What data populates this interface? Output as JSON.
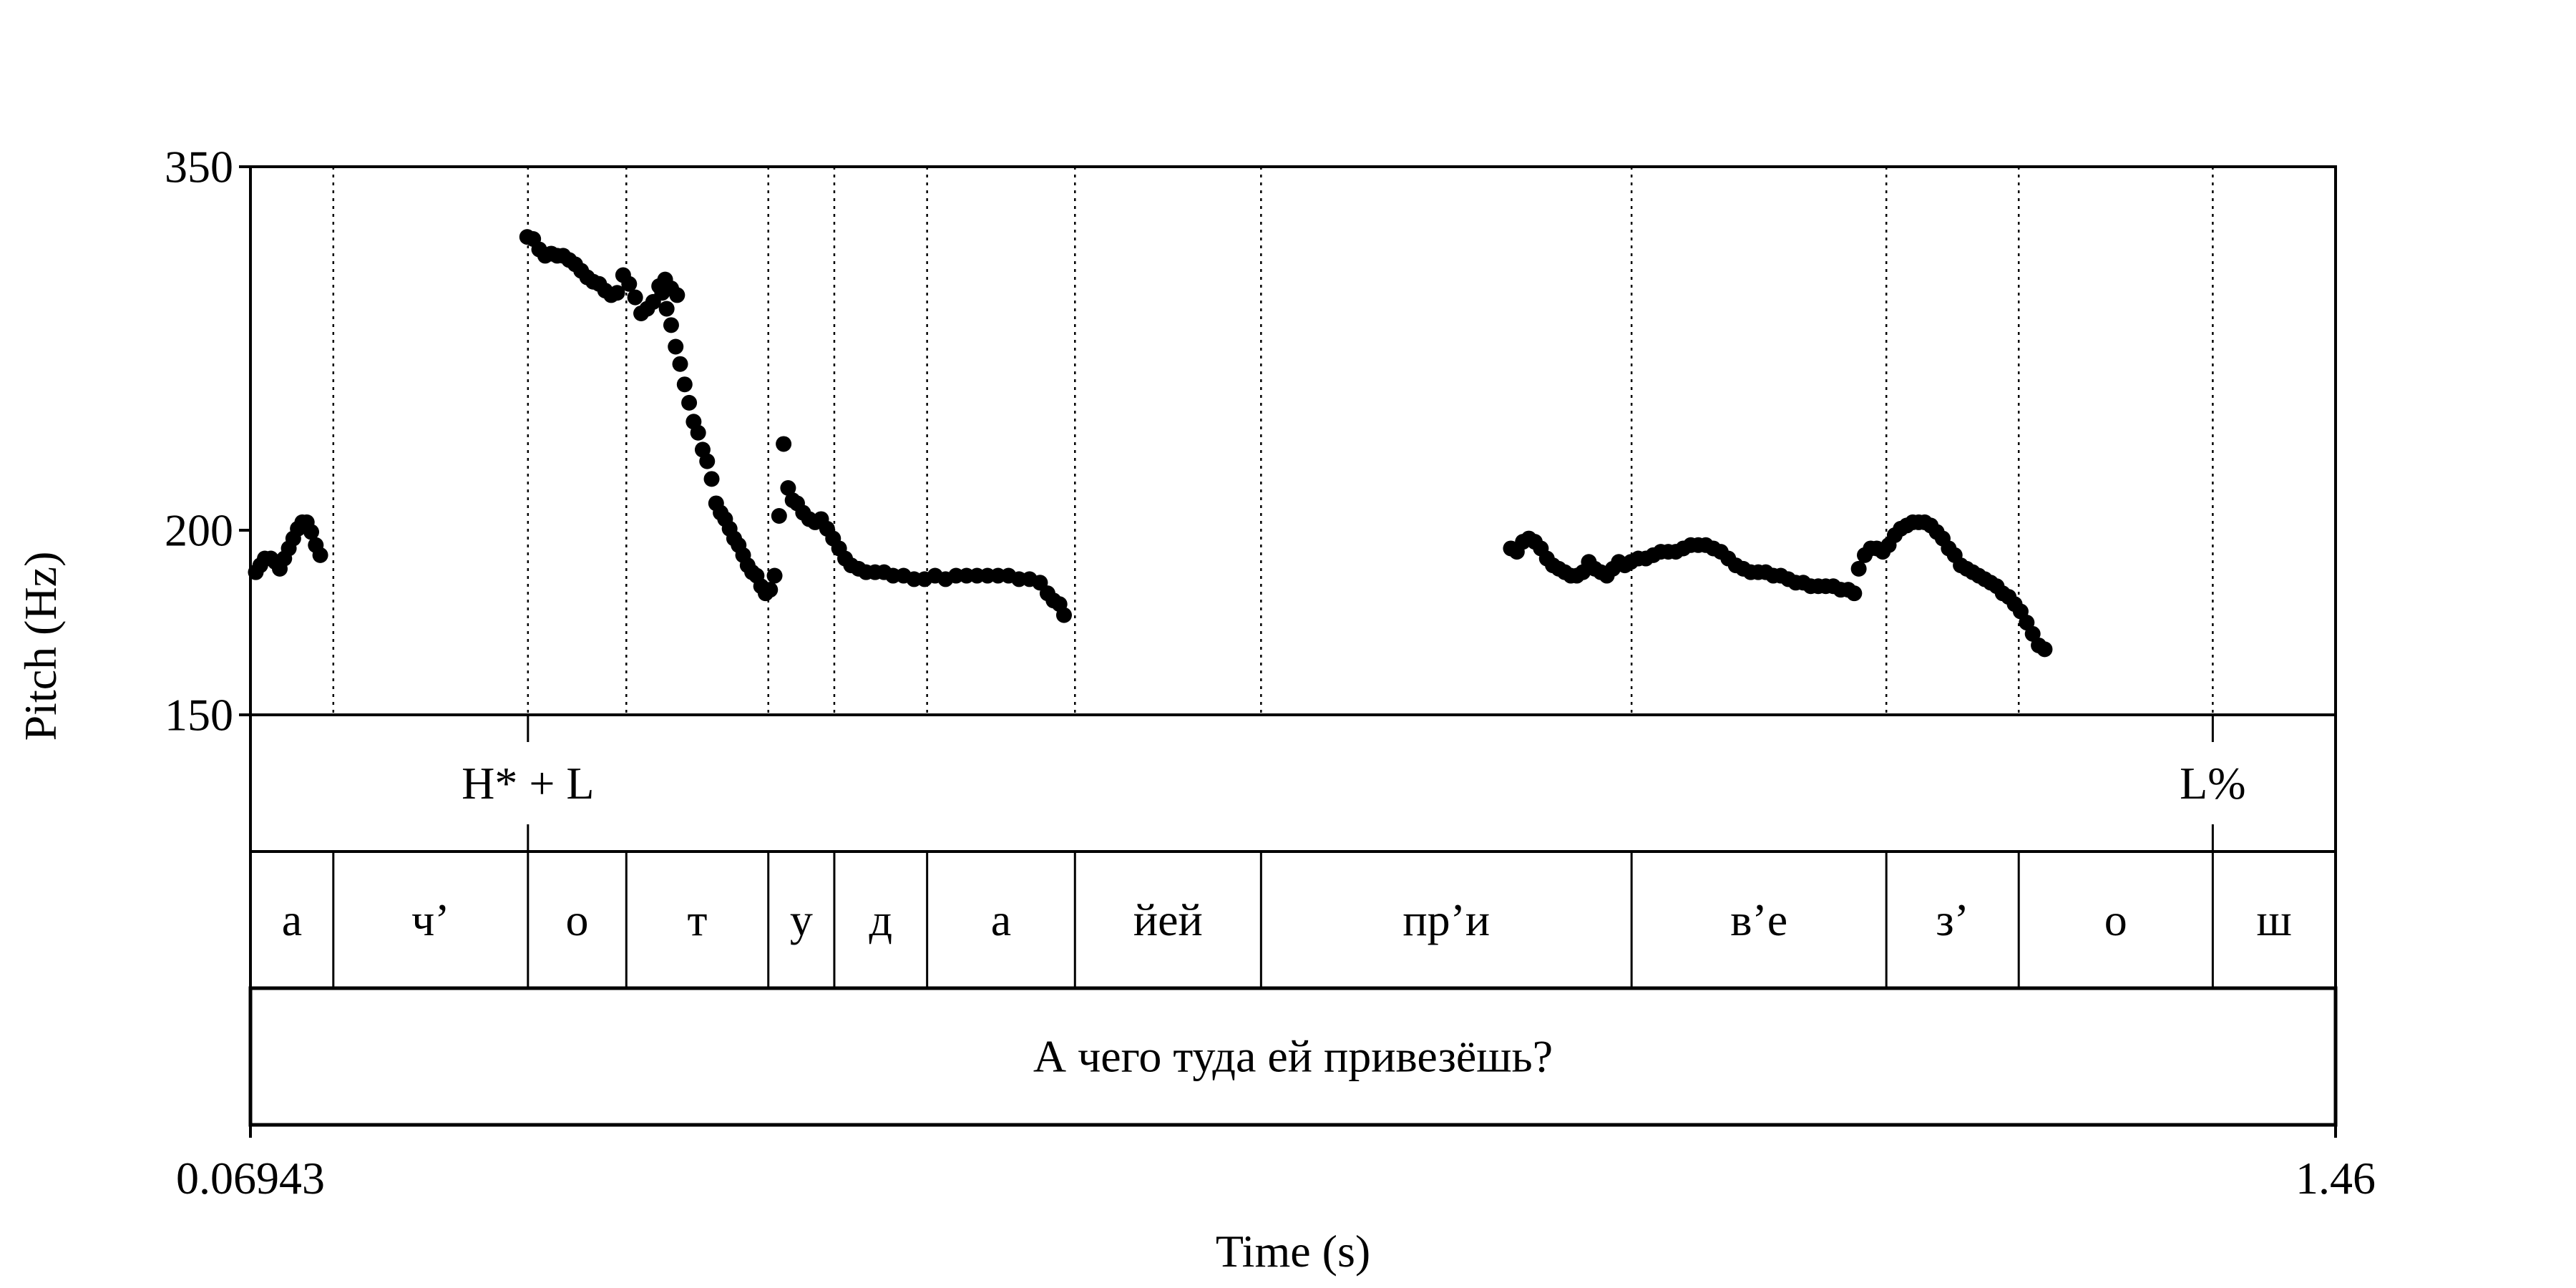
{
  "chart_data": {
    "type": "scatter",
    "title": "",
    "xlabel": "Time (s)",
    "ylabel": "Pitch (Hz)",
    "xlim": [
      0.06943,
      1.46
    ],
    "ylim": [
      150,
      350
    ],
    "x_tick_labels": [
      "0.06943",
      "1.46"
    ],
    "y_tick_labels": [
      "150",
      "200",
      "350"
    ],
    "y_ticks": [
      150,
      200,
      350
    ],
    "grid": false,
    "legend": "none",
    "point_color": "#000000",
    "series": [
      {
        "points": [
          [
            0.073,
            187
          ],
          [
            0.076,
            189
          ],
          [
            0.079,
            191
          ],
          [
            0.083,
            191
          ],
          [
            0.086,
            190
          ],
          [
            0.089,
            188
          ],
          [
            0.092,
            191
          ],
          [
            0.095,
            194
          ],
          [
            0.098,
            197
          ],
          [
            0.101,
            200
          ],
          [
            0.104,
            202
          ],
          [
            0.107,
            202
          ],
          [
            0.11,
            199
          ],
          [
            0.113,
            195
          ],
          [
            0.116,
            192
          ]
        ]
      },
      {
        "points": [
          [
            0.254,
            314
          ],
          [
            0.258,
            313
          ],
          [
            0.262,
            308
          ],
          [
            0.266,
            305
          ],
          [
            0.27,
            306
          ],
          [
            0.274,
            305
          ],
          [
            0.278,
            305
          ],
          [
            0.282,
            303
          ],
          [
            0.286,
            301
          ],
          [
            0.29,
            298
          ],
          [
            0.294,
            295
          ],
          [
            0.298,
            293
          ],
          [
            0.302,
            292
          ],
          [
            0.306,
            289
          ],
          [
            0.31,
            287
          ],
          [
            0.314,
            288
          ],
          [
            0.318,
            296
          ],
          [
            0.322,
            292
          ],
          [
            0.326,
            286
          ],
          [
            0.33,
            279
          ],
          [
            0.334,
            281
          ],
          [
            0.338,
            284
          ],
          [
            0.342,
            291
          ],
          [
            0.346,
            294
          ],
          [
            0.35,
            290
          ],
          [
            0.354,
            287
          ]
        ]
      },
      {
        "points": [
          [
            0.344,
            288
          ],
          [
            0.347,
            281
          ],
          [
            0.35,
            274
          ],
          [
            0.353,
            265
          ],
          [
            0.356,
            258
          ],
          [
            0.359,
            250
          ],
          [
            0.362,
            243
          ],
          [
            0.365,
            236
          ],
          [
            0.368,
            232
          ],
          [
            0.371,
            226
          ],
          [
            0.374,
            222
          ],
          [
            0.377,
            216
          ],
          [
            0.38,
            208
          ],
          [
            0.383,
            205
          ],
          [
            0.386,
            203
          ],
          [
            0.389,
            200
          ],
          [
            0.392,
            197
          ],
          [
            0.395,
            195
          ],
          [
            0.398,
            192
          ],
          [
            0.401,
            189
          ],
          [
            0.404,
            187
          ],
          [
            0.407,
            186
          ],
          [
            0.41,
            183
          ],
          [
            0.413,
            181
          ],
          [
            0.416,
            182
          ],
          [
            0.419,
            186
          ]
        ]
      },
      {
        "points": [
          [
            0.422,
            204
          ],
          [
            0.425,
            228
          ],
          [
            0.428,
            213
          ],
          [
            0.431,
            209
          ],
          [
            0.434,
            208
          ],
          [
            0.438,
            205
          ],
          [
            0.442,
            203
          ],
          [
            0.446,
            202
          ],
          [
            0.45,
            203
          ],
          [
            0.454,
            200
          ],
          [
            0.458,
            197
          ],
          [
            0.462,
            194
          ],
          [
            0.466,
            191
          ],
          [
            0.47,
            189
          ],
          [
            0.475,
            188
          ],
          [
            0.48,
            187
          ],
          [
            0.486,
            187
          ],
          [
            0.492,
            187
          ],
          [
            0.498,
            186
          ],
          [
            0.505,
            186
          ],
          [
            0.512,
            185
          ],
          [
            0.519,
            185
          ],
          [
            0.526,
            186
          ],
          [
            0.533,
            185
          ],
          [
            0.54,
            186
          ],
          [
            0.547,
            186
          ],
          [
            0.554,
            186
          ],
          [
            0.561,
            186
          ],
          [
            0.568,
            186
          ],
          [
            0.575,
            186
          ],
          [
            0.582,
            185
          ],
          [
            0.589,
            185
          ],
          [
            0.596,
            184
          ],
          [
            0.601,
            181
          ],
          [
            0.605,
            179
          ],
          [
            0.609,
            178
          ],
          [
            0.612,
            175
          ]
        ]
      },
      {
        "points": [
          [
            0.91,
            194
          ],
          [
            0.914,
            193
          ],
          [
            0.918,
            196
          ],
          [
            0.922,
            197
          ],
          [
            0.926,
            196
          ],
          [
            0.93,
            194
          ],
          [
            0.934,
            191
          ],
          [
            0.938,
            189
          ],
          [
            0.942,
            188
          ],
          [
            0.946,
            187
          ],
          [
            0.95,
            186
          ],
          [
            0.954,
            186
          ],
          [
            0.958,
            187
          ],
          [
            0.962,
            190
          ],
          [
            0.966,
            188
          ],
          [
            0.97,
            187
          ],
          [
            0.974,
            186
          ],
          [
            0.978,
            188
          ],
          [
            0.982,
            190
          ],
          [
            0.986,
            189
          ],
          [
            0.99,
            190
          ],
          [
            0.995,
            191
          ],
          [
            1.0,
            191
          ],
          [
            1.005,
            192
          ],
          [
            1.01,
            193
          ],
          [
            1.015,
            193
          ],
          [
            1.02,
            193
          ],
          [
            1.025,
            194
          ],
          [
            1.03,
            195
          ],
          [
            1.035,
            195
          ],
          [
            1.04,
            195
          ],
          [
            1.045,
            194
          ],
          [
            1.05,
            193
          ],
          [
            1.055,
            191
          ],
          [
            1.06,
            189
          ],
          [
            1.065,
            188
          ],
          [
            1.07,
            187
          ],
          [
            1.075,
            187
          ],
          [
            1.08,
            187
          ],
          [
            1.085,
            186
          ],
          [
            1.09,
            186
          ],
          [
            1.095,
            185
          ],
          [
            1.1,
            184
          ],
          [
            1.105,
            184
          ],
          [
            1.11,
            183
          ],
          [
            1.115,
            183
          ],
          [
            1.12,
            183
          ],
          [
            1.125,
            183
          ],
          [
            1.13,
            182
          ],
          [
            1.135,
            182
          ],
          [
            1.139,
            181
          ]
        ]
      },
      {
        "points": [
          [
            1.142,
            188
          ],
          [
            1.146,
            192
          ],
          [
            1.15,
            194
          ],
          [
            1.154,
            194
          ],
          [
            1.158,
            193
          ],
          [
            1.162,
            195
          ],
          [
            1.166,
            198
          ],
          [
            1.17,
            200
          ],
          [
            1.174,
            201
          ],
          [
            1.178,
            202
          ],
          [
            1.182,
            202
          ],
          [
            1.186,
            202
          ],
          [
            1.19,
            201
          ],
          [
            1.194,
            199
          ],
          [
            1.198,
            197
          ],
          [
            1.202,
            194
          ],
          [
            1.206,
            192
          ],
          [
            1.21,
            189
          ],
          [
            1.214,
            188
          ],
          [
            1.218,
            187
          ],
          [
            1.222,
            186
          ],
          [
            1.226,
            185
          ],
          [
            1.23,
            184
          ],
          [
            1.234,
            183
          ],
          [
            1.238,
            181
          ],
          [
            1.242,
            180
          ],
          [
            1.246,
            178
          ],
          [
            1.25,
            176
          ],
          [
            1.254,
            173
          ],
          [
            1.258,
            170
          ],
          [
            1.262,
            167
          ],
          [
            1.266,
            166
          ]
        ]
      }
    ],
    "boundaries": [
      0.1247,
      0.2545,
      0.3201,
      0.4148,
      0.4588,
      0.5207,
      0.6193,
      0.7434,
      0.9905,
      1.1604,
      1.2487,
      1.3781
    ],
    "tones": [
      {
        "label": "H* + L",
        "time": 0.2545
      },
      {
        "label": "L%",
        "time": 1.3781
      }
    ],
    "segments": [
      "а",
      "ч’",
      "о",
      "т",
      "у",
      "д",
      "а",
      "йей",
      "пр’и",
      "в’е",
      "з’",
      "о",
      "ш"
    ],
    "sentence": "А чего туда ей привезёшь?"
  }
}
